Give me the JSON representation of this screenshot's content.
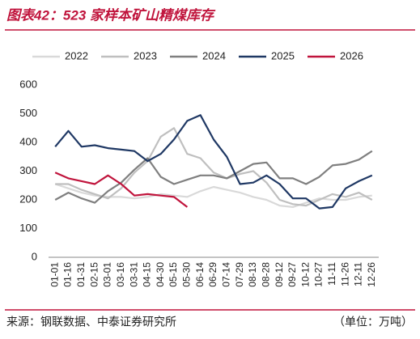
{
  "chart_data": {
    "type": "line",
    "title": "图表42：523 家样本矿山精煤库存",
    "source": "来源：钢联数据、中泰证券研究所",
    "unit": "（单位：万吨）",
    "categories": [
      "01-01",
      "01-16",
      "01-31",
      "02-15",
      "03-01",
      "03-16",
      "03-31",
      "04-15",
      "04-30",
      "05-15",
      "05-30",
      "06-14",
      "06-29",
      "07-14",
      "07-29",
      "08-13",
      "08-28",
      "09-12",
      "09-27",
      "10-12",
      "10-27",
      "11-11",
      "11-26",
      "12-11",
      "12-26"
    ],
    "series": [
      {
        "name": "2022",
        "color": "#d9d9d9",
        "values": [
          255,
          240,
          225,
          215,
          210,
          210,
          205,
          210,
          220,
          215,
          210,
          230,
          245,
          235,
          225,
          210,
          200,
          180,
          175,
          190,
          205,
          200,
          200,
          210,
          215
        ]
      },
      {
        "name": "2023",
        "color": "#bfbfbf",
        "values": [
          255,
          255,
          235,
          220,
          205,
          240,
          295,
          335,
          420,
          450,
          360,
          345,
          295,
          275,
          290,
          300,
          260,
          200,
          185,
          180,
          200,
          220,
          210,
          225,
          200
        ]
      },
      {
        "name": "2024",
        "color": "#7f7f7f",
        "values": [
          200,
          225,
          205,
          190,
          230,
          260,
          305,
          345,
          280,
          255,
          270,
          285,
          285,
          275,
          300,
          325,
          330,
          275,
          275,
          255,
          280,
          320,
          325,
          340,
          370
        ]
      },
      {
        "name": "2025",
        "color": "#1f3864",
        "values": [
          385,
          440,
          385,
          390,
          380,
          375,
          370,
          335,
          360,
          410,
          475,
          495,
          410,
          350,
          255,
          260,
          285,
          255,
          205,
          205,
          170,
          175,
          240,
          265,
          285
        ]
      },
      {
        "name": "2026",
        "color": "#c0143c",
        "values": [
          295,
          275,
          265,
          255,
          285,
          255,
          215,
          220,
          215,
          210,
          175,
          null,
          null,
          null,
          null,
          null,
          null,
          null,
          null,
          null,
          null,
          null,
          null,
          null,
          null
        ]
      }
    ],
    "ylim": [
      0,
      600
    ],
    "yticks": [
      0,
      100,
      200,
      300,
      400,
      500,
      600
    ],
    "grid": false
  }
}
